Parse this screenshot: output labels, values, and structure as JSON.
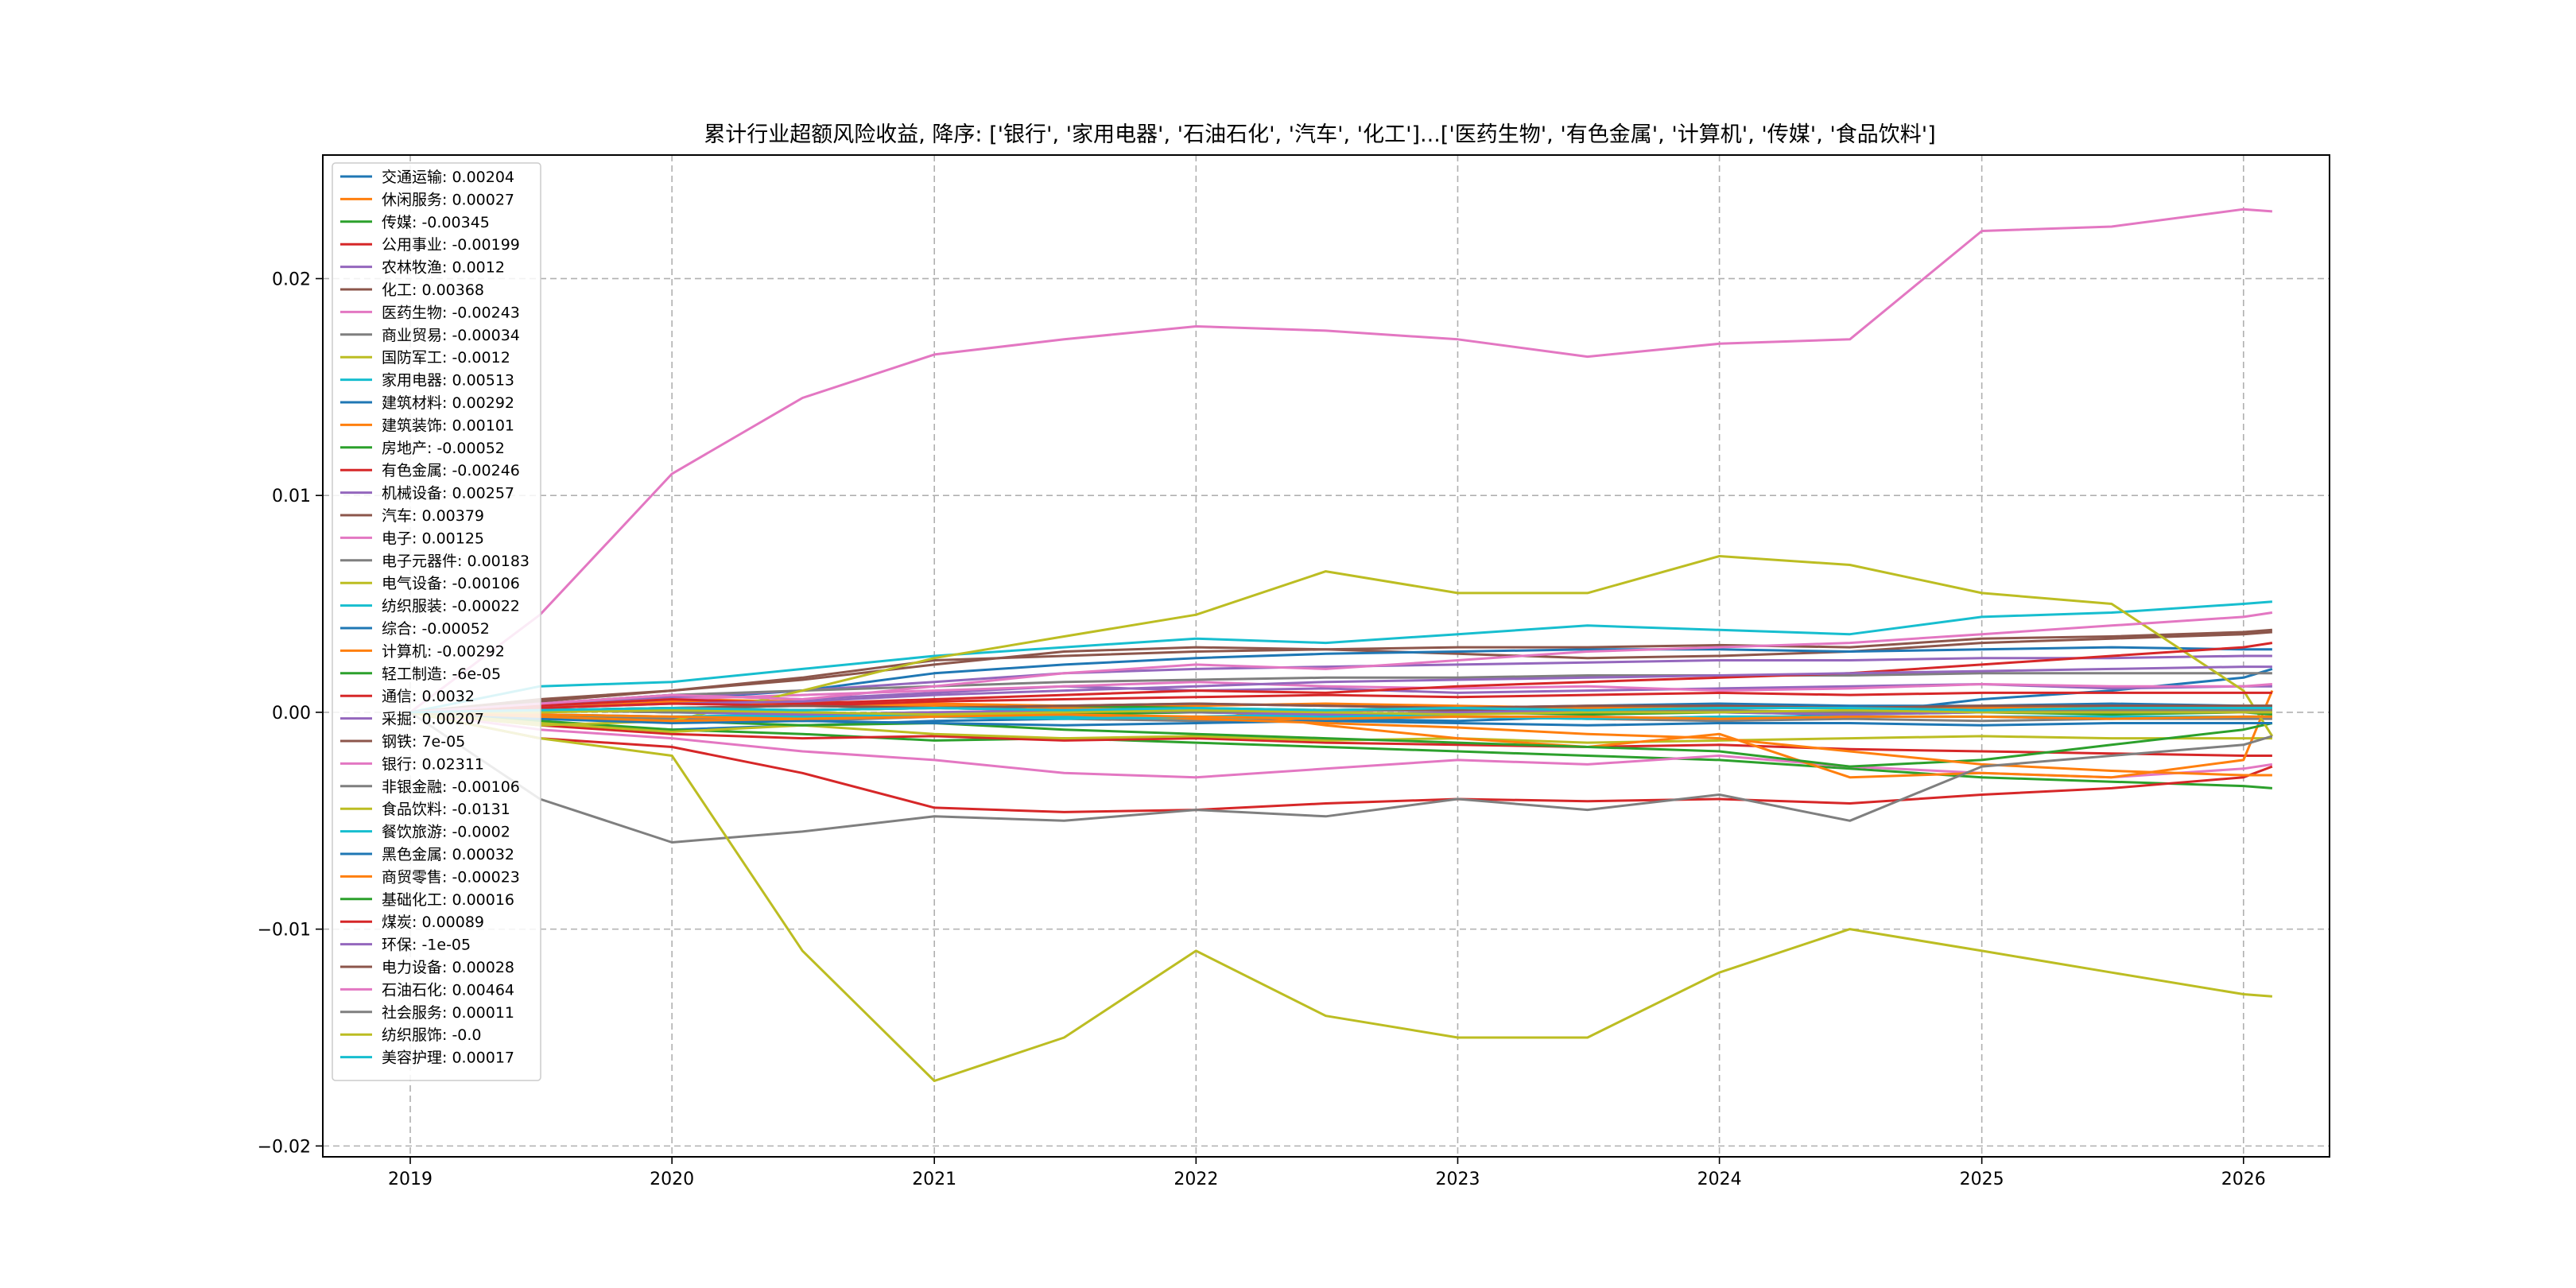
{
  "chart_data": {
    "type": "line",
    "title": "累计行业超额风险收益,  降序: ['银行', '家用电器', '石油石化', '汽车', '化工']...['医药生物', '有色金属', '计算机', '传媒', '食品饮料']",
    "xlabel": "",
    "ylabel": "",
    "x_range": [
      "2018-09-01",
      "2026-05-01"
    ],
    "ylim": [
      -0.0205,
      0.0257
    ],
    "x_ticks": [
      {
        "label": "2019",
        "date": "2019-01-01"
      },
      {
        "label": "2020",
        "date": "2020-01-01"
      },
      {
        "label": "2021",
        "date": "2021-01-01"
      },
      {
        "label": "2022",
        "date": "2022-01-01"
      },
      {
        "label": "2023",
        "date": "2023-01-01"
      },
      {
        "label": "2024",
        "date": "2024-01-01"
      },
      {
        "label": "2025",
        "date": "2025-01-01"
      },
      {
        "label": "2026",
        "date": "2026-01-01"
      }
    ],
    "y_ticks": [
      {
        "label": "0.02",
        "value": 0.02
      },
      {
        "label": "0.01",
        "value": 0.01
      },
      {
        "label": "0.00",
        "value": 0.0
      },
      {
        "label": "−0.01",
        "value": -0.01
      },
      {
        "label": "−0.02",
        "value": -0.02
      }
    ],
    "grid": true,
    "legend_position": "upper-left",
    "x_dates": [
      "2019-01-01",
      "2019-07-01",
      "2020-01-01",
      "2020-07-01",
      "2021-01-01",
      "2021-07-01",
      "2022-01-01",
      "2022-07-01",
      "2023-01-01",
      "2023-07-01",
      "2024-01-01",
      "2024-07-01",
      "2025-01-01",
      "2025-07-01",
      "2026-01-01",
      "2026-02-10"
    ],
    "series": [
      {
        "name": "交通运输",
        "legend_label": "交通运输: 0.00204",
        "color": "#1f77b4",
        "values": [
          0.0,
          -0.0005,
          -0.0008,
          -0.0006,
          -0.0004,
          -0.0003,
          -0.0002,
          -0.0003,
          -0.0004,
          -0.0002,
          -0.0003,
          -0.0001,
          0.0006,
          0.001,
          0.0016,
          0.002
        ]
      },
      {
        "name": "休闲服务",
        "legend_label": "休闲服务: 0.00027",
        "color": "#ff7f0e",
        "values": [
          0.0,
          0.0003,
          0.0005,
          0.0004,
          0.0003,
          0.0002,
          0.0003,
          0.0004,
          0.0003,
          0.0002,
          0.0003,
          0.0002,
          0.0002,
          0.0003,
          0.0003,
          0.0003
        ]
      },
      {
        "name": "传媒",
        "legend_label": "传媒: -0.00345",
        "color": "#2ca02c",
        "values": [
          0.0,
          -0.0004,
          -0.0008,
          -0.001,
          -0.0013,
          -0.0012,
          -0.0014,
          -0.0016,
          -0.0018,
          -0.002,
          -0.0022,
          -0.0026,
          -0.003,
          -0.0032,
          -0.0034,
          -0.0035
        ]
      },
      {
        "name": "公用事业",
        "legend_label": "公用事业: -0.00199",
        "color": "#d62728",
        "values": [
          0.0,
          -0.0006,
          -0.001,
          -0.0012,
          -0.0011,
          -0.0013,
          -0.0012,
          -0.0014,
          -0.0015,
          -0.0016,
          -0.0015,
          -0.0017,
          -0.0018,
          -0.0019,
          -0.002,
          -0.002
        ]
      },
      {
        "name": "农林牧渔",
        "legend_label": "农林牧渔: 0.0012",
        "color": "#9467bd",
        "values": [
          0.0,
          0.0004,
          0.0008,
          0.0006,
          0.0009,
          0.0012,
          0.001,
          0.0011,
          0.0009,
          0.001,
          0.0011,
          0.0012,
          0.0013,
          0.0011,
          0.0012,
          0.0012
        ]
      },
      {
        "name": "化工",
        "legend_label": "化工: 0.00368",
        "color": "#8c564b",
        "values": [
          0.0,
          0.0005,
          0.001,
          0.0015,
          0.0022,
          0.0028,
          0.003,
          0.0029,
          0.0027,
          0.0025,
          0.0026,
          0.0028,
          0.0032,
          0.0034,
          0.0036,
          0.0037
        ]
      },
      {
        "name": "医药生物",
        "legend_label": "医药生物: -0.00243",
        "color": "#e377c2",
        "values": [
          0.0,
          -0.0008,
          -0.0012,
          -0.0018,
          -0.0022,
          -0.0028,
          -0.003,
          -0.0026,
          -0.0022,
          -0.0024,
          -0.002,
          -0.0025,
          -0.0028,
          -0.003,
          -0.0026,
          -0.0024
        ]
      },
      {
        "name": "商业贸易",
        "legend_label": "商业贸易: -0.00034",
        "color": "#7f7f7f",
        "values": [
          0.0,
          -0.0002,
          -0.0003,
          -0.0004,
          -0.0002,
          -0.0003,
          -0.0004,
          -0.0003,
          -0.0002,
          -0.0003,
          -0.0004,
          -0.0003,
          -0.0004,
          -0.0003,
          -0.0003,
          -0.0003
        ]
      },
      {
        "name": "国防军工",
        "legend_label": "国防军工: -0.0012",
        "color": "#bcbd22",
        "values": [
          0.0,
          -0.0005,
          -0.0009,
          -0.0006,
          -0.001,
          -0.0012,
          -0.0011,
          -0.0013,
          -0.0012,
          -0.0014,
          -0.0013,
          -0.0012,
          -0.0011,
          -0.0012,
          -0.0012,
          -0.0012
        ]
      },
      {
        "name": "家用电器",
        "legend_label": "家用电器: 0.00513",
        "color": "#17becf",
        "values": [
          0.0,
          0.0012,
          0.0014,
          0.002,
          0.0026,
          0.003,
          0.0034,
          0.0032,
          0.0036,
          0.004,
          0.0038,
          0.0036,
          0.0044,
          0.0046,
          0.005,
          0.0051
        ]
      },
      {
        "name": "建筑材料",
        "legend_label": "建筑材料: 0.00292",
        "color": "#1f77b4",
        "values": [
          0.0,
          0.0003,
          0.0006,
          0.001,
          0.0018,
          0.0022,
          0.0025,
          0.0027,
          0.0028,
          0.0029,
          0.0029,
          0.0028,
          0.0029,
          0.003,
          0.0029,
          0.0029
        ]
      },
      {
        "name": "建筑装饰",
        "legend_label": "建筑装饰: 0.00101",
        "color": "#ff7f0e",
        "values": [
          0.0,
          0.0004,
          0.0006,
          0.0005,
          0.0004,
          0.0003,
          0.0002,
          -0.0006,
          -0.0012,
          -0.0016,
          -0.001,
          -0.003,
          -0.0028,
          -0.003,
          -0.0022,
          0.001
        ]
      },
      {
        "name": "房地产",
        "legend_label": "房地产: -0.00052",
        "color": "#2ca02c",
        "values": [
          0.0,
          -0.0002,
          -0.0004,
          -0.0006,
          -0.0005,
          -0.0008,
          -0.001,
          -0.0012,
          -0.0014,
          -0.0016,
          -0.0018,
          -0.0025,
          -0.0022,
          -0.0015,
          -0.0008,
          -0.0005
        ]
      },
      {
        "name": "有色金属",
        "legend_label": "有色金属: -0.00246",
        "color": "#d62728",
        "values": [
          0.0,
          -0.0012,
          -0.0016,
          -0.0028,
          -0.0044,
          -0.0046,
          -0.0045,
          -0.0042,
          -0.004,
          -0.0041,
          -0.004,
          -0.0042,
          -0.0038,
          -0.0035,
          -0.003,
          -0.0025
        ]
      },
      {
        "name": "机械设备",
        "legend_label": "机械设备: 0.00257",
        "color": "#9467bd",
        "values": [
          0.0,
          0.0004,
          0.0007,
          0.001,
          0.0014,
          0.0018,
          0.002,
          0.0021,
          0.0022,
          0.0023,
          0.0024,
          0.0024,
          0.0025,
          0.0025,
          0.0026,
          0.0026
        ]
      },
      {
        "name": "汽车",
        "legend_label": "汽车: 0.00379",
        "color": "#8c564b",
        "values": [
          0.0,
          0.0006,
          0.001,
          0.0016,
          0.0024,
          0.0026,
          0.0028,
          0.0029,
          0.003,
          0.003,
          0.0031,
          0.003,
          0.0034,
          0.0035,
          0.0037,
          0.0038
        ]
      },
      {
        "name": "电子",
        "legend_label": "电子: 0.00125",
        "color": "#e377c2",
        "values": [
          0.0,
          0.0003,
          0.0006,
          0.0008,
          0.001,
          0.0012,
          0.0014,
          0.0012,
          0.0011,
          0.0012,
          0.001,
          0.0011,
          0.0013,
          0.0012,
          0.0012,
          0.0013
        ]
      },
      {
        "name": "电子元器件",
        "legend_label": "电子元器件: 0.00183",
        "color": "#7f7f7f",
        "values": [
          0.0,
          0.0004,
          0.0008,
          0.001,
          0.0012,
          0.0014,
          0.0015,
          0.0016,
          0.0016,
          0.0017,
          0.0017,
          0.0017,
          0.0018,
          0.0018,
          0.0018,
          0.0018
        ]
      },
      {
        "name": "电气设备",
        "legend_label": "电气设备: -0.00106",
        "color": "#bcbd22",
        "values": [
          0.0,
          -0.0006,
          -0.0004,
          0.001,
          0.0025,
          0.0035,
          0.0045,
          0.0065,
          0.0055,
          0.0055,
          0.0072,
          0.0068,
          0.0055,
          0.005,
          0.001,
          -0.0011
        ]
      },
      {
        "name": "纺织服装",
        "legend_label": "纺织服装: -0.00022",
        "color": "#17becf",
        "values": [
          0.0,
          -0.0001,
          -0.0002,
          -0.0002,
          -0.0001,
          -0.0002,
          -0.0003,
          -0.0002,
          -0.0002,
          -0.0003,
          -0.0002,
          -0.0002,
          -0.0002,
          -0.0002,
          -0.0002,
          -0.0002
        ]
      },
      {
        "name": "综合",
        "legend_label": "综合: -0.00052",
        "color": "#1f77b4",
        "values": [
          0.0,
          -0.0003,
          -0.0005,
          -0.0004,
          -0.0005,
          -0.0006,
          -0.0005,
          -0.0004,
          -0.0005,
          -0.0006,
          -0.0005,
          -0.0005,
          -0.0006,
          -0.0005,
          -0.0005,
          -0.0005
        ]
      },
      {
        "name": "计算机",
        "legend_label": "计算机: -0.00292",
        "color": "#ff7f0e",
        "values": [
          0.0,
          -0.0002,
          -0.0004,
          -0.0003,
          -0.0002,
          -0.0001,
          -0.0003,
          -0.0005,
          -0.0007,
          -0.001,
          -0.0012,
          -0.0018,
          -0.0024,
          -0.0027,
          -0.0029,
          -0.0029
        ]
      },
      {
        "name": "轻工制造",
        "legend_label": "轻工制造: -6e-05",
        "color": "#2ca02c",
        "values": [
          0.0,
          0.0001,
          0.0,
          -0.0001,
          0.0,
          -0.0001,
          0.0,
          -0.0001,
          0.0,
          -0.0001,
          0.0,
          -0.0001,
          0.0,
          -0.0001,
          0.0,
          -0.0001
        ]
      },
      {
        "name": "通信",
        "legend_label": "通信: 0.0032",
        "color": "#d62728",
        "values": [
          0.0,
          0.0003,
          0.0006,
          0.0004,
          0.0006,
          0.0008,
          0.001,
          0.0009,
          0.0012,
          0.0014,
          0.0016,
          0.0018,
          0.0022,
          0.0026,
          0.003,
          0.0032
        ]
      },
      {
        "name": "采掘",
        "legend_label": "采掘: 0.00207",
        "color": "#9467bd",
        "values": [
          0.0,
          0.0002,
          0.0004,
          0.0005,
          0.0008,
          0.001,
          0.0012,
          0.0014,
          0.0015,
          0.0016,
          0.0017,
          0.0018,
          0.0019,
          0.002,
          0.0021,
          0.0021
        ]
      },
      {
        "name": "钢铁",
        "legend_label": "钢铁: 7e-05",
        "color": "#8c564b",
        "values": [
          0.0,
          0.0001,
          0.0,
          0.0001,
          0.0002,
          0.0001,
          0.0,
          0.0001,
          0.0001,
          0.0,
          0.0001,
          0.0,
          0.0001,
          0.0001,
          0.0,
          0.0001
        ]
      },
      {
        "name": "银行",
        "legend_label": "银行: 0.02311",
        "color": "#e377c2",
        "values": [
          0.0,
          0.0045,
          0.011,
          0.0145,
          0.0165,
          0.0172,
          0.0178,
          0.0176,
          0.0172,
          0.0164,
          0.017,
          0.0172,
          0.0222,
          0.0224,
          0.0232,
          0.0231
        ]
      },
      {
        "name": "非银金融",
        "legend_label": "非银金融: -0.00106",
        "color": "#7f7f7f",
        "values": [
          0.0,
          -0.004,
          -0.006,
          -0.0055,
          -0.0048,
          -0.005,
          -0.0045,
          -0.0048,
          -0.004,
          -0.0045,
          -0.0038,
          -0.005,
          -0.0025,
          -0.002,
          -0.0015,
          -0.0011
        ]
      },
      {
        "name": "食品饮料",
        "legend_label": "食品饮料: -0.0131",
        "color": "#bcbd22",
        "values": [
          0.0,
          -0.0012,
          -0.002,
          -0.011,
          -0.017,
          -0.015,
          -0.011,
          -0.014,
          -0.015,
          -0.015,
          -0.012,
          -0.01,
          -0.011,
          -0.012,
          -0.013,
          -0.0131
        ]
      },
      {
        "name": "餐饮旅游",
        "legend_label": "餐饮旅游: -0.0002",
        "color": "#17becf",
        "values": [
          0.0,
          -0.0001,
          -0.0002,
          -0.0001,
          -0.0002,
          -0.0003,
          -0.0002,
          -0.0001,
          -0.0002,
          -0.0003,
          -0.0002,
          -0.0002,
          -0.0002,
          -0.0003,
          -0.0002,
          -0.0002
        ]
      },
      {
        "name": "黑色金属",
        "legend_label": "黑色金属: 0.00032",
        "color": "#1f77b4",
        "values": [
          0.0,
          0.0001,
          0.0002,
          0.0003,
          0.0002,
          0.0003,
          0.0004,
          0.0003,
          0.0002,
          0.0003,
          0.0004,
          0.0003,
          0.0003,
          0.0004,
          0.0003,
          0.0003
        ]
      },
      {
        "name": "商贸零售",
        "legend_label": "商贸零售: -0.00023",
        "color": "#ff7f0e",
        "values": [
          0.0,
          -0.0001,
          -0.0002,
          -0.0003,
          -0.0002,
          -0.0001,
          -0.0002,
          -0.0003,
          -0.0002,
          -0.0002,
          -0.0003,
          -0.0002,
          -0.0002,
          -0.0003,
          -0.0002,
          -0.0002
        ]
      },
      {
        "name": "基础化工",
        "legend_label": "基础化工: 0.00016",
        "color": "#2ca02c",
        "values": [
          0.0,
          0.0001,
          0.0002,
          0.0001,
          0.0002,
          0.0003,
          0.0002,
          0.0001,
          0.0002,
          0.0001,
          0.0002,
          0.0002,
          0.0001,
          0.0002,
          0.0002,
          0.0002
        ]
      },
      {
        "name": "煤炭",
        "legend_label": "煤炭: 0.00089",
        "color": "#d62728",
        "values": [
          0.0,
          0.0002,
          0.0004,
          0.0003,
          0.0005,
          0.0006,
          0.0007,
          0.0008,
          0.0007,
          0.0008,
          0.0009,
          0.0008,
          0.0009,
          0.0009,
          0.0009,
          0.0009
        ]
      },
      {
        "name": "环保",
        "legend_label": "环保: -1e-05",
        "color": "#9467bd",
        "values": [
          0.0,
          0.0001,
          0.0,
          -0.0001,
          0.0,
          0.0001,
          0.0,
          -0.0001,
          0.0,
          0.0001,
          0.0,
          -0.0001,
          0.0,
          0.0,
          0.0,
          0.0
        ]
      },
      {
        "name": "电力设备",
        "legend_label": "电力设备: 0.00028",
        "color": "#8c564b",
        "values": [
          0.0,
          0.0001,
          0.0002,
          0.0003,
          0.0002,
          0.0003,
          0.0004,
          0.0003,
          0.0002,
          0.0003,
          0.0003,
          0.0002,
          0.0003,
          0.0003,
          0.0003,
          0.0003
        ]
      },
      {
        "name": "石油石化",
        "legend_label": "石油石化: 0.00464",
        "color": "#e377c2",
        "values": [
          0.0,
          0.0004,
          0.0008,
          0.0006,
          0.0012,
          0.0018,
          0.0022,
          0.002,
          0.0024,
          0.0028,
          0.003,
          0.0032,
          0.0036,
          0.004,
          0.0044,
          0.0046
        ]
      },
      {
        "name": "社会服务",
        "legend_label": "社会服务: 0.00011",
        "color": "#7f7f7f",
        "values": [
          0.0,
          0.0001,
          0.0,
          0.0001,
          0.0002,
          0.0001,
          0.0,
          0.0001,
          0.0002,
          0.0001,
          0.0001,
          0.0,
          0.0001,
          0.0001,
          0.0001,
          0.0001
        ]
      },
      {
        "name": "纺织服饰",
        "legend_label": "纺织服饰: -0.0",
        "color": "#bcbd22",
        "values": [
          0.0,
          0.0,
          0.0001,
          0.0,
          -0.0001,
          0.0,
          0.0001,
          0.0,
          -0.0001,
          0.0,
          0.0,
          0.0001,
          0.0,
          0.0,
          0.0,
          0.0
        ]
      },
      {
        "name": "美容护理",
        "legend_label": "美容护理: 0.00017",
        "color": "#17becf",
        "values": [
          0.0,
          0.0001,
          0.0002,
          0.0001,
          0.0002,
          0.0001,
          0.0002,
          0.0001,
          0.0002,
          0.0001,
          0.0002,
          0.0002,
          0.0001,
          0.0002,
          0.0002,
          0.0002
        ]
      }
    ]
  }
}
